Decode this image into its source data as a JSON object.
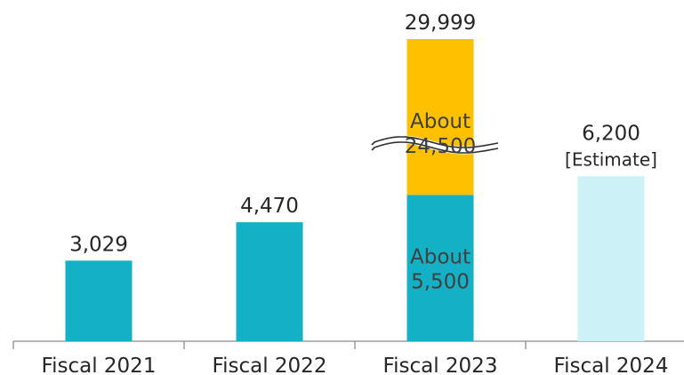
{
  "chart_data": {
    "type": "bar",
    "title": "",
    "xlabel": "",
    "ylabel": "",
    "categories": [
      "Fiscal 2021",
      "Fiscal 2022",
      "Fiscal 2023",
      "Fiscal 2024"
    ],
    "total_labels": [
      "3,029",
      "4,470",
      "29,999",
      "6,200"
    ],
    "bars": [
      {
        "category": "Fiscal 2021",
        "value": 3029,
        "color": "#14B1C6"
      },
      {
        "category": "Fiscal 2022",
        "value": 4470,
        "color": "#14B1C6"
      },
      {
        "category": "Fiscal 2023",
        "value": 29999,
        "axis_break": true,
        "segments": [
          {
            "value": 5500,
            "label_lines": [
              "About",
              "5,500"
            ],
            "color": "#14B1C6"
          },
          {
            "value": 24500,
            "label_lines": [
              "About",
              "24,500"
            ],
            "color": "#FFC000"
          }
        ]
      },
      {
        "category": "Fiscal 2024",
        "value": 6200,
        "color": "#CCF2F8",
        "note": "[Estimate]"
      }
    ],
    "grid": false,
    "legend": "none",
    "colors": {
      "teal": "#14B1C6",
      "gold": "#FFC000",
      "light_teal": "#CCF2F8",
      "text": "#262626",
      "axis": "#8c8c8c"
    }
  }
}
